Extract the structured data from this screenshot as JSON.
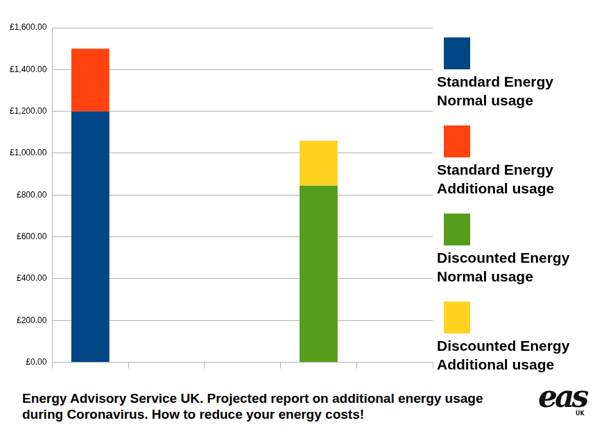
{
  "chart_data": {
    "type": "bar",
    "title": "Energy Advisory Service UK. Projected report on additional energy usage during Coronavirus. How to reduce your energy costs!",
    "logo": "eas",
    "logo_sub": "UK",
    "categories": [
      null,
      null,
      null,
      null,
      null
    ],
    "series": [
      {
        "name": "Standard Energy Normal usage",
        "color": "#004586",
        "values": [
          1200,
          null,
          null,
          null,
          null
        ]
      },
      {
        "name": "Standard Energy Additional usage",
        "color": "#ff420e",
        "values": [
          300,
          null,
          null,
          null,
          null
        ]
      },
      {
        "name": "Discounted Energy Normal usage",
        "color": "#579d1c",
        "values": [
          null,
          null,
          null,
          845,
          null
        ]
      },
      {
        "name": "Discounted Energy Additional usage",
        "color": "#ffd320",
        "values": [
          null,
          null,
          null,
          215,
          null
        ]
      }
    ],
    "ylim": [
      0,
      1600
    ],
    "yticks": [
      {
        "value": 0,
        "label": "£0.00"
      },
      {
        "value": 200,
        "label": "£200.00"
      },
      {
        "value": 400,
        "label": "£400.00"
      },
      {
        "value": 600,
        "label": "£600.00"
      },
      {
        "value": 800,
        "label": "£800.00"
      },
      {
        "value": 1000,
        "label": "£1,000.00"
      },
      {
        "value": 1200,
        "label": "£1,200.00"
      },
      {
        "value": 1400,
        "label": "£1,400.00"
      },
      {
        "value": 1600,
        "label": "£1,600.00"
      }
    ],
    "stacked": true,
    "grid": true,
    "legend": "right",
    "tick_labels": "y"
  }
}
